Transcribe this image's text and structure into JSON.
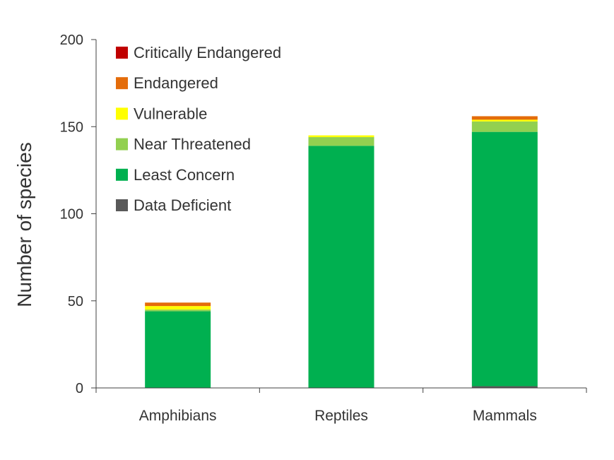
{
  "chart_data": {
    "type": "bar",
    "stacked": true,
    "title": "",
    "xlabel": "",
    "ylabel": "Number of species",
    "ylim": [
      0,
      200
    ],
    "yticks": [
      0,
      50,
      100,
      150,
      200
    ],
    "grid": false,
    "legend_position": "top-left",
    "categories": [
      "Amphibians",
      "Reptiles",
      "Mammals"
    ],
    "series": [
      {
        "name": "Data Deficient",
        "color": "#595959",
        "values": [
          0,
          0,
          1
        ]
      },
      {
        "name": "Least Concern",
        "color": "#00b050",
        "values": [
          44,
          139,
          146
        ]
      },
      {
        "name": "Near Threatened",
        "color": "#92d050",
        "values": [
          1,
          5,
          6
        ]
      },
      {
        "name": "Vulnerable",
        "color": "#ffff00",
        "values": [
          2,
          1,
          1
        ]
      },
      {
        "name": "Endangered",
        "color": "#e46c0a",
        "values": [
          2,
          0,
          2
        ]
      },
      {
        "name": "Critically Endangered",
        "color": "#c00000",
        "values": [
          0,
          0,
          0
        ]
      }
    ],
    "legend_order": [
      "Critically Endangered",
      "Endangered",
      "Vulnerable",
      "Near Threatened",
      "Least Concern",
      "Data Deficient"
    ]
  }
}
